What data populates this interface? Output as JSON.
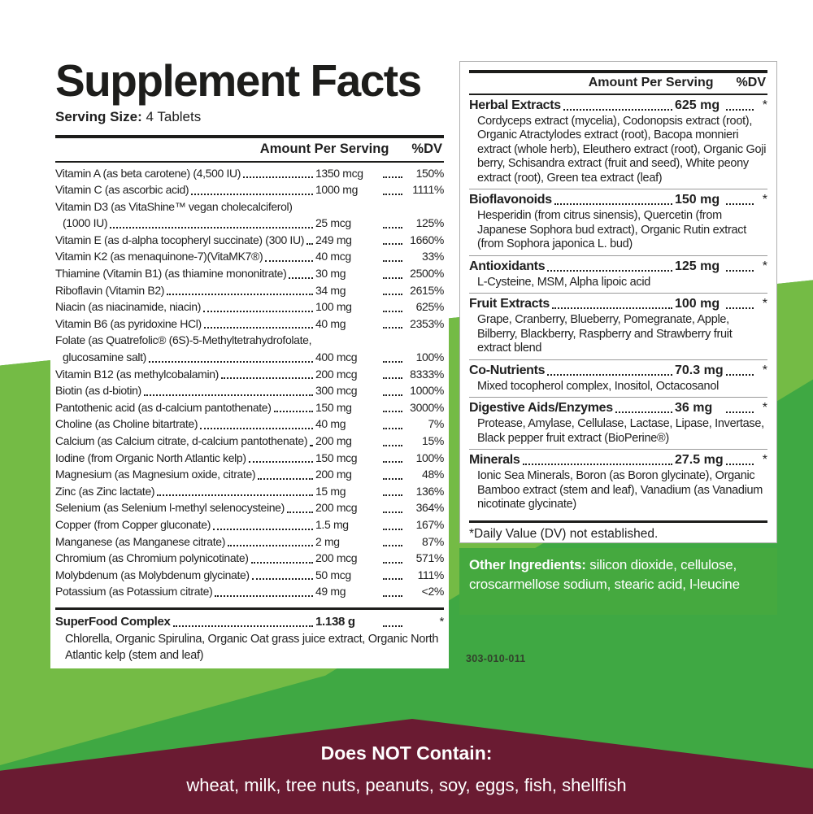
{
  "left_panel": {
    "title": "Supplement Facts",
    "serving_size_label": "Serving Size:",
    "serving_size_value": "4 Tablets",
    "header": {
      "amount": "Amount Per Serving",
      "dv": "%DV"
    },
    "rows": [
      {
        "n": "Vitamin A (as beta carotene) (4,500 IU)",
        "amt": "1350 mcg",
        "dv": "150%"
      },
      {
        "n": "Vitamin C (as ascorbic acid)",
        "amt": "1000 mg",
        "dv": "1111%"
      },
      {
        "n": "Vitamin D3 (as VitaShine™ vegan cholecalciferol)",
        "n2": "(1000 IU)",
        "amt": "25 mcg",
        "dv": "125%"
      },
      {
        "n": "Vitamin E (as d-alpha tocopheryl succinate) (300 IU)",
        "amt": "249 mg",
        "dv": "1660%"
      },
      {
        "n": "Vitamin K2 (as menaquinone-7)(VitaMK7®)",
        "amt": "40 mcg",
        "dv": "33%"
      },
      {
        "n": "Thiamine (Vitamin B1) (as thiamine mononitrate)",
        "amt": "30 mg",
        "dv": "2500%"
      },
      {
        "n": "Riboflavin (Vitamin B2)",
        "amt": "34 mg",
        "dv": "2615%"
      },
      {
        "n": "Niacin (as niacinamide, niacin)",
        "amt": "100 mg",
        "dv": "625%"
      },
      {
        "n": "Vitamin B6 (as pyridoxine HCl)",
        "amt": "40 mg",
        "dv": "2353%"
      },
      {
        "n": "Folate (as Quatrefolic® (6S)-5-Methyltetrahydrofolate,",
        "n2": "glucosamine salt)",
        "amt": "400 mcg",
        "dv": "100%"
      },
      {
        "n": "Vitamin B12 (as methylcobalamin)",
        "amt": "200 mcg",
        "dv": "8333%"
      },
      {
        "n": "Biotin (as d-biotin)",
        "amt": "300 mcg",
        "dv": "1000%"
      },
      {
        "n": "Pantothenic acid (as d-calcium pantothenate)",
        "amt": "150 mg",
        "dv": "3000%"
      },
      {
        "n": "Choline (as Choline bitartrate)",
        "amt": "40 mg",
        "dv": "7%"
      },
      {
        "n": "Calcium (as Calcium citrate, d-calcium pantothenate)",
        "amt": "200 mg",
        "dv": "15%"
      },
      {
        "n": "Iodine (from Organic North Atlantic kelp)",
        "amt": "150 mcg",
        "dv": "100%"
      },
      {
        "n": "Magnesium (as Magnesium oxide, citrate)",
        "amt": "200 mg",
        "dv": "48%"
      },
      {
        "n": "Zinc (as Zinc lactate)",
        "amt": "15 mg",
        "dv": "136%"
      },
      {
        "n": "Selenium (as Selenium l-methyl selenocysteine)",
        "amt": "200 mcg",
        "dv": "364%"
      },
      {
        "n": "Copper (from Copper gluconate)",
        "amt": "1.5 mg",
        "dv": "167%"
      },
      {
        "n": "Manganese (as Manganese citrate)",
        "amt": "2 mg",
        "dv": "87%"
      },
      {
        "n": "Chromium (as Chromium polynicotinate)",
        "amt": "200 mcg",
        "dv": "571%"
      },
      {
        "n": "Molybdenum (as Molybdenum glycinate)",
        "amt": "50 mcg",
        "dv": "111%"
      },
      {
        "n": "Potassium (as Potassium citrate)",
        "amt": "49 mg",
        "dv": "<2%"
      }
    ],
    "superfood": {
      "n": "SuperFood Complex",
      "amt": "1.138 g",
      "dv": "*",
      "desc": "Chlorella, Organic Spirulina, Organic Oat grass juice extract, Organic North Atlantic kelp (stem and leaf)"
    }
  },
  "right_panel": {
    "header": {
      "amount": "Amount Per Serving",
      "dv": "%DV"
    },
    "sections": [
      {
        "t": "Herbal Extracts",
        "amt": "625 mg",
        "dv": "*",
        "desc": "Cordyceps extract (mycelia), Codonopsis extract (root), Organic Atractylodes extract (root), Bacopa monnieri extract (whole herb), Eleuthero extract (root), Organic Goji berry, Schisandra extract (fruit and seed), White peony extract (root), Green tea extract (leaf)"
      },
      {
        "t": "Bioflavonoids",
        "amt": "150 mg",
        "dv": "*",
        "desc": "Hesperidin (from citrus sinensis), Quercetin (from Japanese Sophora bud extract), Organic Rutin extract (from Sophora japonica L. bud)"
      },
      {
        "t": "Antioxidants",
        "amt": "125 mg",
        "dv": "*",
        "desc": "L-Cysteine, MSM, Alpha lipoic acid"
      },
      {
        "t": "Fruit Extracts",
        "amt": "100 mg",
        "dv": "*",
        "desc": "Grape, Cranberry, Blueberry, Pomegranate, Apple, Bilberry, Blackberry, Raspberry and Strawberry fruit extract blend"
      },
      {
        "t": "Co-Nutrients",
        "amt": "70.3 mg",
        "dv": "*",
        "desc": "Mixed tocopherol complex, Inositol, Octacosanol"
      },
      {
        "t": "Digestive Aids/Enzymes",
        "amt": "36 mg",
        "dv": "*",
        "desc": "Protease, Amylase, Cellulase, Lactase, Lipase, Invertase, Black pepper fruit extract (BioPerine®)"
      },
      {
        "t": "Minerals",
        "amt": "27.5 mg",
        "dv": "*",
        "desc": "Ionic Sea Minerals, Boron (as Boron glycinate), Organic Bamboo extract (stem and leaf), Vanadium (as Vanadium nicotinate glycinate)"
      }
    ],
    "footnote": "*Daily Value (DV) not established."
  },
  "other_ingredients": {
    "label": "Other Ingredients:",
    "text": " silicon dioxide, cellulose, croscarmellose sodium, stearic acid, l-leucine"
  },
  "product_code": "303-010-011",
  "bottom_banner": {
    "title": "Does NOT Contain:",
    "items": "wheat, milk, tree nuts, peanuts, soy, eggs, fish, shellfish"
  },
  "colors": {
    "green_dark": "#3fa843",
    "green_light": "#74bb45",
    "green_box": "#45a93f",
    "maroon": "#6a1b32",
    "text": "#1f1f1f"
  }
}
